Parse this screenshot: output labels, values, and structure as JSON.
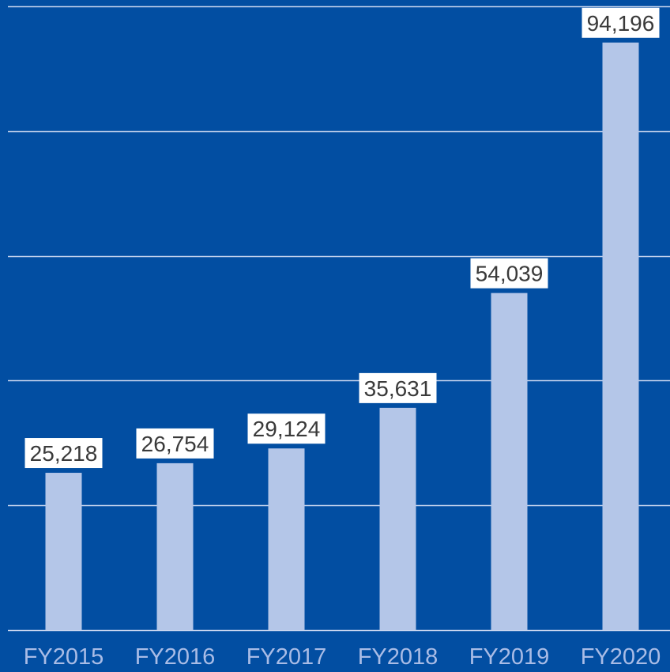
{
  "colors": {
    "background": "#024ea2",
    "bar": "#b4c6e8",
    "gridline": "#c9d6ef",
    "tick_label": "#a9bce6",
    "value_label_bg": "#ffffff",
    "value_label_text": "#3a3a3a"
  },
  "chart_data": {
    "type": "bar",
    "categories": [
      "FY2015",
      "FY2016",
      "FY2017",
      "FY2018",
      "FY2019",
      "FY2020"
    ],
    "values": [
      25218,
      26754,
      29124,
      35631,
      54039,
      94196
    ],
    "value_labels": [
      "25,218",
      "26,754",
      "29,124",
      "35,631",
      "54,039",
      "94,196"
    ],
    "title": "",
    "xlabel": "",
    "ylabel": "",
    "ylim": [
      0,
      100000
    ],
    "gridlines": [
      0,
      20000,
      40000,
      60000,
      80000,
      100000
    ],
    "grid": true,
    "legend": "none"
  }
}
